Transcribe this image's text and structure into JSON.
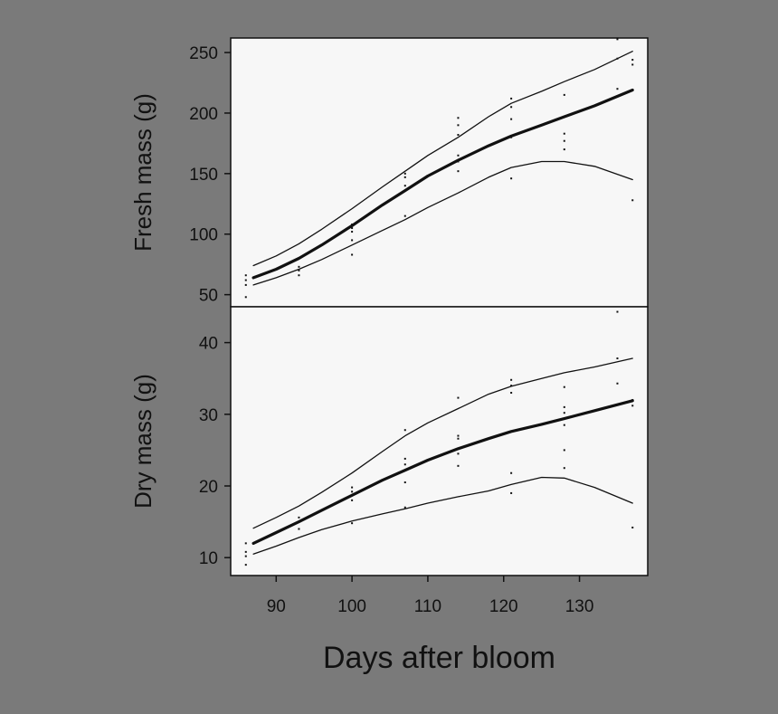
{
  "figure": {
    "background": "#7a7a7a",
    "panel_fill": "#f7f7f7",
    "xlabel": "Days after bloom"
  },
  "chart_data": [
    {
      "type": "line",
      "title": "",
      "ylabel": "Fresh mass (g)",
      "xlim": [
        84,
        139
      ],
      "ylim": [
        40,
        262
      ],
      "yticks": [
        50,
        100,
        150,
        200,
        250
      ],
      "series": [
        {
          "role": "fit",
          "x": [
            87,
            90,
            93,
            96,
            100,
            104,
            107,
            110,
            114,
            118,
            121,
            125,
            128,
            132,
            137
          ],
          "values": [
            64,
            71,
            80,
            91,
            107,
            124,
            136,
            148,
            161,
            173,
            181,
            190,
            197,
            206,
            219
          ]
        },
        {
          "role": "upper",
          "x": [
            87,
            90,
            93,
            96,
            100,
            104,
            107,
            110,
            114,
            118,
            121,
            125,
            128,
            132,
            137
          ],
          "values": [
            74,
            82,
            92,
            104,
            121,
            139,
            152,
            165,
            180,
            197,
            208,
            218,
            226,
            236,
            251
          ]
        },
        {
          "role": "lower",
          "x": [
            87,
            90,
            93,
            96,
            100,
            104,
            107,
            110,
            114,
            118,
            121,
            125,
            128,
            132,
            137
          ],
          "values": [
            58,
            64,
            71,
            79,
            91,
            103,
            112,
            122,
            134,
            147,
            155,
            160,
            160,
            156,
            145
          ]
        }
      ],
      "points": [
        [
          86,
          48
        ],
        [
          86,
          58
        ],
        [
          86,
          62
        ],
        [
          86,
          66
        ],
        [
          93,
          66
        ],
        [
          93,
          70
        ],
        [
          93,
          73
        ],
        [
          100,
          83
        ],
        [
          100,
          95
        ],
        [
          100,
          102
        ],
        [
          100,
          105
        ],
        [
          100,
          108
        ],
        [
          107,
          115
        ],
        [
          107,
          140
        ],
        [
          107,
          147
        ],
        [
          107,
          150
        ],
        [
          114,
          152
        ],
        [
          114,
          160
        ],
        [
          114,
          165
        ],
        [
          114,
          182
        ],
        [
          114,
          190
        ],
        [
          114,
          196
        ],
        [
          121,
          146
        ],
        [
          121,
          180
        ],
        [
          121,
          195
        ],
        [
          121,
          205
        ],
        [
          121,
          212
        ],
        [
          128,
          170
        ],
        [
          128,
          177
        ],
        [
          128,
          183
        ],
        [
          128,
          215
        ],
        [
          135,
          220
        ],
        [
          135,
          245
        ],
        [
          135,
          261
        ],
        [
          137,
          128
        ],
        [
          137,
          240
        ],
        [
          137,
          244
        ]
      ]
    },
    {
      "type": "line",
      "title": "",
      "ylabel": "Dry mass (g)",
      "xlim": [
        84,
        139
      ],
      "ylim": [
        7.5,
        45
      ],
      "yticks": [
        10,
        20,
        30,
        40
      ],
      "series": [
        {
          "role": "fit",
          "x": [
            87,
            90,
            93,
            96,
            100,
            104,
            107,
            110,
            114,
            118,
            121,
            125,
            128,
            132,
            137
          ],
          "values": [
            12.0,
            13.5,
            15.0,
            16.6,
            18.7,
            20.8,
            22.2,
            23.6,
            25.2,
            26.6,
            27.6,
            28.6,
            29.4,
            30.5,
            31.9
          ]
        },
        {
          "role": "upper",
          "x": [
            87,
            90,
            93,
            96,
            100,
            104,
            107,
            110,
            114,
            118,
            121,
            125,
            128,
            132,
            137
          ],
          "values": [
            14.1,
            15.6,
            17.2,
            19.1,
            21.8,
            24.8,
            27.0,
            28.8,
            30.8,
            32.8,
            33.9,
            35.0,
            35.8,
            36.6,
            37.8
          ]
        },
        {
          "role": "lower",
          "x": [
            87,
            90,
            93,
            96,
            100,
            104,
            107,
            110,
            114,
            118,
            121,
            125,
            128,
            132,
            137
          ],
          "values": [
            10.5,
            11.6,
            12.8,
            13.9,
            15.1,
            16.1,
            16.8,
            17.6,
            18.5,
            19.3,
            20.2,
            21.2,
            21.1,
            19.8,
            17.6
          ]
        }
      ],
      "points": [
        [
          86,
          9
        ],
        [
          86,
          10.2
        ],
        [
          86,
          10.8
        ],
        [
          86,
          12
        ],
        [
          93,
          14
        ],
        [
          93,
          15
        ],
        [
          93,
          15.6
        ],
        [
          100,
          14.8
        ],
        [
          100,
          18
        ],
        [
          100,
          19.2
        ],
        [
          100,
          19.8
        ],
        [
          107,
          17
        ],
        [
          107,
          20.5
        ],
        [
          107,
          23
        ],
        [
          107,
          23.8
        ],
        [
          107,
          27.8
        ],
        [
          114,
          22.8
        ],
        [
          114,
          24.5
        ],
        [
          114,
          26.6
        ],
        [
          114,
          27
        ],
        [
          114,
          32.3
        ],
        [
          121,
          19
        ],
        [
          121,
          21.8
        ],
        [
          121,
          33
        ],
        [
          121,
          34
        ],
        [
          121,
          34.8
        ],
        [
          128,
          22.5
        ],
        [
          128,
          25
        ],
        [
          128,
          28.5
        ],
        [
          128,
          30.2
        ],
        [
          128,
          31
        ],
        [
          128,
          33.8
        ],
        [
          135,
          34.3
        ],
        [
          135,
          37.8
        ],
        [
          135,
          44.3
        ],
        [
          137,
          14.2
        ],
        [
          137,
          31.2
        ],
        [
          137,
          32
        ]
      ]
    }
  ],
  "xaxis": {
    "ticks": [
      90,
      100,
      110,
      120,
      130
    ]
  }
}
